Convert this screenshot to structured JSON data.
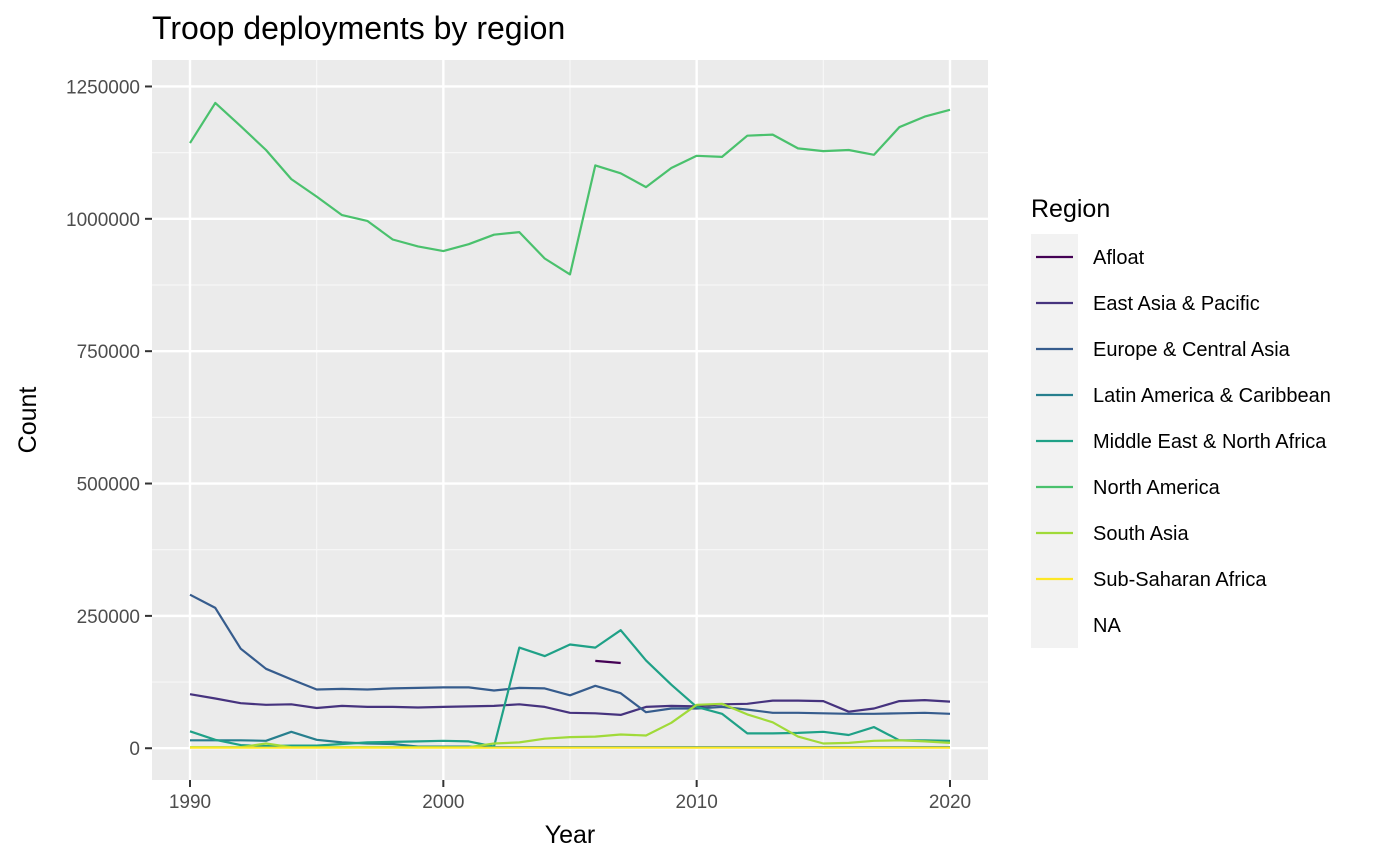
{
  "chart_data": {
    "type": "line",
    "title": "Troop deployments by region",
    "xlabel": "Year",
    "ylabel": "Count",
    "xlim": [
      1988.5,
      2021.5
    ],
    "ylim": [
      -60000,
      1300000
    ],
    "x_ticks": [
      1990,
      2000,
      2010,
      2020
    ],
    "y_ticks": [
      0,
      250000,
      500000,
      750000,
      1000000,
      1250000
    ],
    "x_tick_labels": [
      "1990",
      "2000",
      "2010",
      "2020"
    ],
    "y_tick_labels": [
      "0",
      "250000",
      "500000",
      "750000",
      "1000000",
      "1250000"
    ],
    "grid": true,
    "legend_position": "right",
    "legend_title": "Region",
    "series": [
      {
        "name": "Afloat",
        "color": "#440154",
        "x": [
          2006,
          2007
        ],
        "y": [
          165000,
          161000
        ]
      },
      {
        "name": "East Asia & Pacific",
        "color": "#46337e",
        "x": [
          1990,
          1991,
          1992,
          1993,
          1994,
          1995,
          1996,
          1997,
          1998,
          1999,
          2000,
          2001,
          2002,
          2003,
          2004,
          2005,
          2006,
          2007,
          2008,
          2009,
          2010,
          2011,
          2012,
          2013,
          2014,
          2015,
          2016,
          2017,
          2018,
          2019,
          2020
        ],
        "y": [
          102000,
          94000,
          85000,
          82000,
          83000,
          76000,
          80000,
          78000,
          78000,
          77000,
          78000,
          79000,
          80000,
          83000,
          78000,
          67000,
          66000,
          63000,
          78000,
          80000,
          79000,
          83000,
          84000,
          90000,
          90000,
          89000,
          69000,
          75000,
          89000,
          91000,
          88000
        ]
      },
      {
        "name": "Europe & Central Asia",
        "color": "#365c8d",
        "x": [
          1990,
          1991,
          1992,
          1993,
          1994,
          1995,
          1996,
          1997,
          1998,
          1999,
          2000,
          2001,
          2002,
          2003,
          2004,
          2005,
          2006,
          2007,
          2008,
          2009,
          2010,
          2011,
          2012,
          2013,
          2014,
          2015,
          2016,
          2017,
          2018,
          2019,
          2020
        ],
        "y": [
          290000,
          265000,
          188000,
          150000,
          130000,
          111000,
          112000,
          111000,
          113000,
          114000,
          115000,
          115000,
          109000,
          114000,
          113000,
          100000,
          118000,
          104000,
          68000,
          75000,
          75000,
          78000,
          73000,
          67000,
          67000,
          66000,
          65000,
          65000,
          66000,
          67000,
          65000
        ]
      },
      {
        "name": "Latin America & Caribbean",
        "color": "#277f8e",
        "x": [
          1990,
          1991,
          1992,
          1993,
          1994,
          1995,
          1996,
          1997,
          1998,
          1999,
          2000,
          2001,
          2002,
          2003,
          2004,
          2005,
          2006,
          2007,
          2008,
          2009,
          2010,
          2011,
          2012,
          2013,
          2014,
          2015,
          2016,
          2017,
          2018,
          2019,
          2020
        ],
        "y": [
          15000,
          15000,
          15000,
          14000,
          31000,
          16000,
          11000,
          9000,
          8000,
          3000,
          3000,
          3000,
          2000,
          2000,
          2000,
          2000,
          2000,
          2000,
          2000,
          2000,
          2000,
          2000,
          2000,
          2000,
          2000,
          2000,
          2000,
          2000,
          2000,
          2000,
          2000
        ]
      },
      {
        "name": "Middle East & North Africa",
        "color": "#1fa187",
        "x": [
          1990,
          1991,
          1992,
          1993,
          1994,
          1995,
          1996,
          1997,
          1998,
          1999,
          2000,
          2001,
          2002,
          2003,
          2004,
          2005,
          2006,
          2007,
          2008,
          2009,
          2010,
          2011,
          2012,
          2013,
          2014,
          2015,
          2016,
          2017,
          2018,
          2019,
          2020
        ],
        "y": [
          32000,
          16000,
          6000,
          4000,
          5000,
          5000,
          8000,
          11000,
          12000,
          13000,
          14000,
          13000,
          3000,
          190000,
          174000,
          196000,
          190000,
          223000,
          166000,
          120000,
          78000,
          65000,
          28000,
          28000,
          29000,
          31000,
          25000,
          40000,
          15000,
          15000,
          14000
        ]
      },
      {
        "name": "North America",
        "color": "#4ac16d",
        "x": [
          1990,
          1991,
          1992,
          1993,
          1994,
          1995,
          1996,
          1997,
          1998,
          1999,
          2000,
          2001,
          2002,
          2003,
          2004,
          2005,
          2006,
          2007,
          2008,
          2009,
          2010,
          2011,
          2012,
          2013,
          2014,
          2015,
          2016,
          2017,
          2018,
          2019,
          2020
        ],
        "y": [
          1143000,
          1219000,
          1175000,
          1130000,
          1075000,
          1042000,
          1007000,
          996000,
          961000,
          948000,
          939000,
          952000,
          970000,
          975000,
          925000,
          895000,
          1101000,
          1086000,
          1060000,
          1096000,
          1119000,
          1117000,
          1157000,
          1159000,
          1133000,
          1128000,
          1130000,
          1121000,
          1173000,
          1193000,
          1206000
        ]
      },
      {
        "name": "South Asia",
        "color": "#a0da39",
        "x": [
          1990,
          1991,
          1992,
          1993,
          1994,
          1995,
          1996,
          1997,
          1998,
          1999,
          2000,
          2001,
          2002,
          2003,
          2004,
          2005,
          2006,
          2007,
          2008,
          2009,
          2010,
          2011,
          2012,
          2013,
          2014,
          2015,
          2016,
          2017,
          2018,
          2019,
          2020
        ],
        "y": [
          2000,
          2000,
          2000,
          9000,
          2000,
          2000,
          2000,
          2000,
          2000,
          2000,
          2000,
          2000,
          9000,
          11000,
          18000,
          21000,
          22000,
          26000,
          24000,
          48000,
          82000,
          84000,
          64000,
          49000,
          22000,
          9000,
          10000,
          14000,
          15000,
          13000,
          10000
        ]
      },
      {
        "name": "Sub-Saharan Africa",
        "color": "#fde725",
        "x": [
          1990,
          1991,
          1992,
          1993,
          1994,
          1995,
          1996,
          1997,
          1998,
          1999,
          2000,
          2001,
          2002,
          2003,
          2004,
          2005,
          2006,
          2007,
          2008,
          2009,
          2010,
          2011,
          2012,
          2013,
          2014,
          2015,
          2016,
          2017,
          2018,
          2019,
          2020
        ],
        "y": [
          1000,
          1000,
          1000,
          1000,
          1000,
          1000,
          1000,
          1000,
          1000,
          1000,
          1000,
          1000,
          1000,
          1000,
          1000,
          1000,
          1000,
          1000,
          1000,
          1000,
          1000,
          1000,
          1000,
          1000,
          1000,
          1000,
          1000,
          1000,
          1000,
          1000,
          1000
        ]
      },
      {
        "name": "NA",
        "color": "#f2f2f2",
        "x": [],
        "y": []
      }
    ]
  }
}
